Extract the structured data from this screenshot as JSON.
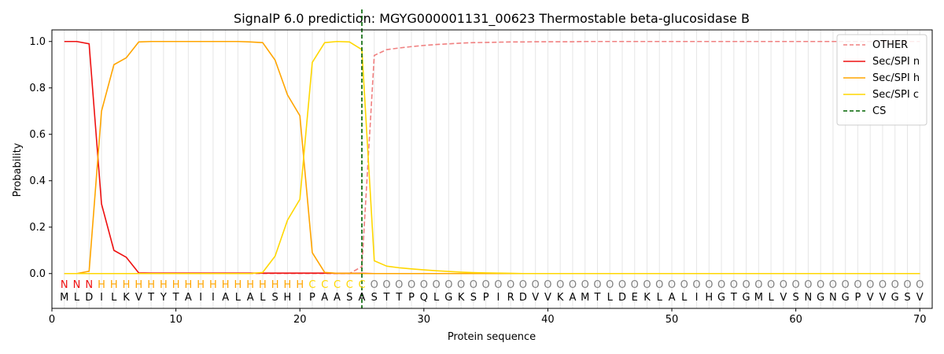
{
  "chart_data": {
    "type": "line",
    "title": "SignalP 6.0 prediction: MGYG000001131_00623 Thermostable beta-glucosidase B",
    "xlabel": "Protein sequence",
    "ylabel": "Probability",
    "xlim": [
      0,
      71
    ],
    "ylim": [
      -0.15,
      1.05
    ],
    "xticks": [
      0,
      10,
      20,
      30,
      40,
      50,
      60,
      70
    ],
    "yticks": [
      0.0,
      0.2,
      0.4,
      0.6,
      0.8,
      1.0
    ],
    "grid": "vertical lines at each residue",
    "legend_position": "top-right",
    "x": [
      1,
      2,
      3,
      4,
      5,
      6,
      7,
      8,
      9,
      10,
      11,
      12,
      13,
      14,
      15,
      16,
      17,
      18,
      19,
      20,
      21,
      22,
      23,
      24,
      25,
      26,
      27,
      28,
      29,
      30,
      31,
      32,
      33,
      34,
      35,
      36,
      37,
      38,
      39,
      40,
      41,
      42,
      43,
      44,
      45,
      46,
      47,
      48,
      49,
      50,
      51,
      52,
      53,
      54,
      55,
      56,
      57,
      58,
      59,
      60,
      61,
      62,
      63,
      64,
      65,
      66,
      67,
      68,
      69,
      70
    ],
    "series": [
      {
        "name": "OTHER",
        "color": "#f08080",
        "dash": "dashed",
        "values": [
          0,
          0,
          0,
          0,
          0,
          0,
          0,
          0,
          0,
          0,
          0,
          0,
          0,
          0,
          0,
          0,
          0,
          0,
          0,
          0,
          0,
          0,
          0,
          0,
          0.03,
          0.94,
          0.965,
          0.972,
          0.978,
          0.983,
          0.987,
          0.99,
          0.993,
          0.995,
          0.996,
          0.997,
          0.998,
          0.998,
          0.999,
          0.999,
          0.999,
          0.999,
          1,
          1,
          1,
          1,
          1,
          1,
          1,
          1,
          1,
          1,
          1,
          1,
          1,
          1,
          1,
          1,
          1,
          1,
          1,
          1,
          1,
          1,
          1,
          1,
          1,
          1,
          1,
          1
        ]
      },
      {
        "name": "Sec/SPI n",
        "color": "#ee1111",
        "dash": "solid",
        "values": [
          1,
          1,
          0.99,
          0.3,
          0.1,
          0.07,
          0.003,
          0.002,
          0.002,
          0.002,
          0.002,
          0.002,
          0.002,
          0.002,
          0.002,
          0.002,
          0.002,
          0.002,
          0.002,
          0.002,
          0.002,
          0.002,
          0.001,
          0.001,
          0.001,
          0,
          0,
          0,
          0,
          0,
          0,
          0,
          0,
          0,
          0,
          0,
          0,
          0,
          0,
          0,
          0,
          0,
          0,
          0,
          0,
          0,
          0,
          0,
          0,
          0,
          0,
          0,
          0,
          0,
          0,
          0,
          0,
          0,
          0,
          0,
          0,
          0,
          0,
          0,
          0,
          0,
          0,
          0,
          0,
          0
        ]
      },
      {
        "name": "Sec/SPI h",
        "color": "#ffa500",
        "dash": "solid",
        "values": [
          0,
          0,
          0.01,
          0.7,
          0.9,
          0.93,
          0.998,
          1,
          1,
          1,
          1,
          1,
          1,
          1,
          1,
          0.998,
          0.995,
          0.92,
          0.77,
          0.68,
          0.09,
          0.005,
          0.001,
          0.001,
          0,
          0,
          0,
          0,
          0,
          0,
          0,
          0,
          0,
          0,
          0,
          0,
          0,
          0,
          0,
          0,
          0,
          0,
          0,
          0,
          0,
          0,
          0,
          0,
          0,
          0,
          0,
          0,
          0,
          0,
          0,
          0,
          0,
          0,
          0,
          0,
          0,
          0,
          0,
          0,
          0,
          0,
          0,
          0,
          0,
          0
        ]
      },
      {
        "name": "Sec/SPI c",
        "color": "#ffd700",
        "dash": "solid",
        "values": [
          0,
          0,
          0,
          0,
          0,
          0,
          0,
          0,
          0,
          0,
          0,
          0,
          0,
          0,
          0,
          0,
          0.005,
          0.075,
          0.23,
          0.32,
          0.91,
          0.995,
          1,
          0.998,
          0.965,
          0.055,
          0.032,
          0.025,
          0.02,
          0.016,
          0.012,
          0.009,
          0.006,
          0.004,
          0.003,
          0.002,
          0.001,
          0,
          0,
          0,
          0,
          0,
          0,
          0,
          0,
          0,
          0,
          0,
          0,
          0,
          0,
          0,
          0,
          0,
          0,
          0,
          0,
          0,
          0,
          0,
          0,
          0,
          0,
          0,
          0,
          0,
          0,
          0,
          0,
          0
        ]
      }
    ],
    "cs": {
      "name": "CS",
      "x": 25,
      "color": "#006400"
    },
    "sequence": [
      "M",
      "L",
      "D",
      "I",
      "L",
      "K",
      "V",
      "T",
      "Y",
      "T",
      "A",
      "I",
      "I",
      "A",
      "L",
      "A",
      "L",
      "S",
      "H",
      "I",
      "P",
      "A",
      "A",
      "S",
      "A",
      "S",
      "T",
      "T",
      "P",
      "Q",
      "L",
      "G",
      "K",
      "S",
      "P",
      "I",
      "R",
      "D",
      "V",
      "V",
      "K",
      "A",
      "M",
      "T",
      "L",
      "D",
      "E",
      "K",
      "L",
      "A",
      "L",
      "I",
      "H",
      "G",
      "T",
      "G",
      "M",
      "L",
      "V",
      "S",
      "N",
      "G",
      "N",
      "G",
      "P",
      "V",
      "V",
      "G",
      "S",
      "V"
    ],
    "labels": [
      "N",
      "N",
      "N",
      "H",
      "H",
      "H",
      "H",
      "H",
      "H",
      "H",
      "H",
      "H",
      "H",
      "H",
      "H",
      "H",
      "H",
      "H",
      "H",
      "H",
      "C",
      "C",
      "C",
      "C",
      "C",
      "O",
      "O",
      "O",
      "O",
      "O",
      "O",
      "O",
      "O",
      "O",
      "O",
      "O",
      "O",
      "O",
      "O",
      "O",
      "O",
      "O",
      "O",
      "O",
      "O",
      "O",
      "O",
      "O",
      "O",
      "O",
      "O",
      "O",
      "O",
      "O",
      "O",
      "O",
      "O",
      "O",
      "O",
      "O",
      "O",
      "O",
      "O",
      "O",
      "O",
      "O",
      "O",
      "O",
      "O",
      "O"
    ],
    "label_colors": {
      "N": "#ee1111",
      "H": "#ffa500",
      "C": "#ffd700",
      "O": "#808080"
    }
  }
}
